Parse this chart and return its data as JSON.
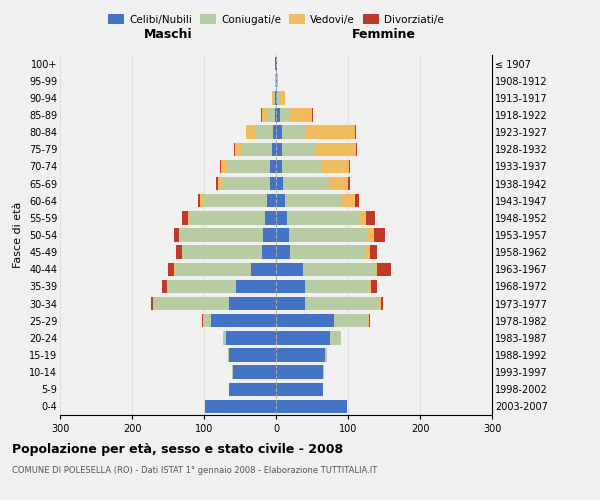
{
  "age_groups": [
    "0-4",
    "5-9",
    "10-14",
    "15-19",
    "20-24",
    "25-29",
    "30-34",
    "35-39",
    "40-44",
    "45-49",
    "50-54",
    "55-59",
    "60-64",
    "65-69",
    "70-74",
    "75-79",
    "80-84",
    "85-89",
    "90-94",
    "95-99",
    "100+"
  ],
  "birth_years": [
    "2003-2007",
    "1998-2002",
    "1993-1997",
    "1988-1992",
    "1983-1987",
    "1978-1982",
    "1973-1977",
    "1968-1972",
    "1963-1967",
    "1958-1962",
    "1953-1957",
    "1948-1952",
    "1943-1947",
    "1938-1942",
    "1933-1937",
    "1928-1932",
    "1923-1927",
    "1918-1922",
    "1913-1917",
    "1908-1912",
    "≤ 1907"
  ],
  "colors": {
    "celibi": "#4472c4",
    "coniugati": "#b8cca4",
    "vedovi": "#f0bc5e",
    "divorziati": "#c0392b",
    "background": "#f0f0f0",
    "grid": "#cccccc"
  },
  "males": {
    "celibi": [
      98,
      65,
      60,
      65,
      70,
      90,
      65,
      55,
      35,
      20,
      18,
      15,
      12,
      8,
      8,
      5,
      4,
      2,
      1,
      0,
      1
    ],
    "coniugati": [
      0,
      0,
      1,
      2,
      4,
      10,
      105,
      95,
      105,
      110,
      115,
      105,
      90,
      68,
      60,
      42,
      25,
      10,
      2,
      1,
      0
    ],
    "vedovi": [
      0,
      0,
      0,
      0,
      0,
      2,
      1,
      1,
      1,
      1,
      2,
      2,
      3,
      5,
      8,
      10,
      12,
      8,
      3,
      1,
      0
    ],
    "divorziati": [
      0,
      0,
      0,
      0,
      0,
      1,
      2,
      8,
      9,
      8,
      7,
      8,
      4,
      2,
      2,
      1,
      1,
      1,
      0,
      0,
      0
    ]
  },
  "females": {
    "celibi": [
      98,
      65,
      65,
      68,
      75,
      80,
      40,
      40,
      38,
      20,
      18,
      15,
      12,
      10,
      8,
      8,
      8,
      5,
      2,
      1,
      1
    ],
    "coniugati": [
      0,
      0,
      1,
      3,
      15,
      48,
      105,
      90,
      100,
      105,
      110,
      100,
      80,
      65,
      55,
      48,
      32,
      15,
      2,
      0,
      0
    ],
    "vedovi": [
      0,
      0,
      0,
      0,
      0,
      1,
      1,
      2,
      2,
      5,
      8,
      10,
      18,
      25,
      38,
      55,
      70,
      30,
      8,
      2,
      1
    ],
    "divorziati": [
      0,
      0,
      0,
      0,
      0,
      1,
      3,
      8,
      20,
      10,
      16,
      12,
      5,
      3,
      2,
      2,
      1,
      1,
      0,
      0,
      0
    ]
  },
  "title": "Popolazione per età, sesso e stato civile - 2008",
  "subtitle": "COMUNE DI POLESELLA (RO) - Dati ISTAT 1° gennaio 2008 - Elaborazione TUTTITALIA.IT",
  "xlabel_left": "Maschi",
  "xlabel_right": "Femmine",
  "ylabel_left": "Fasce di età",
  "xlim": 300,
  "legend_labels": [
    "Celibi/Nubili",
    "Coniugati/e",
    "Vedovi/e",
    "Divorziati/e"
  ]
}
